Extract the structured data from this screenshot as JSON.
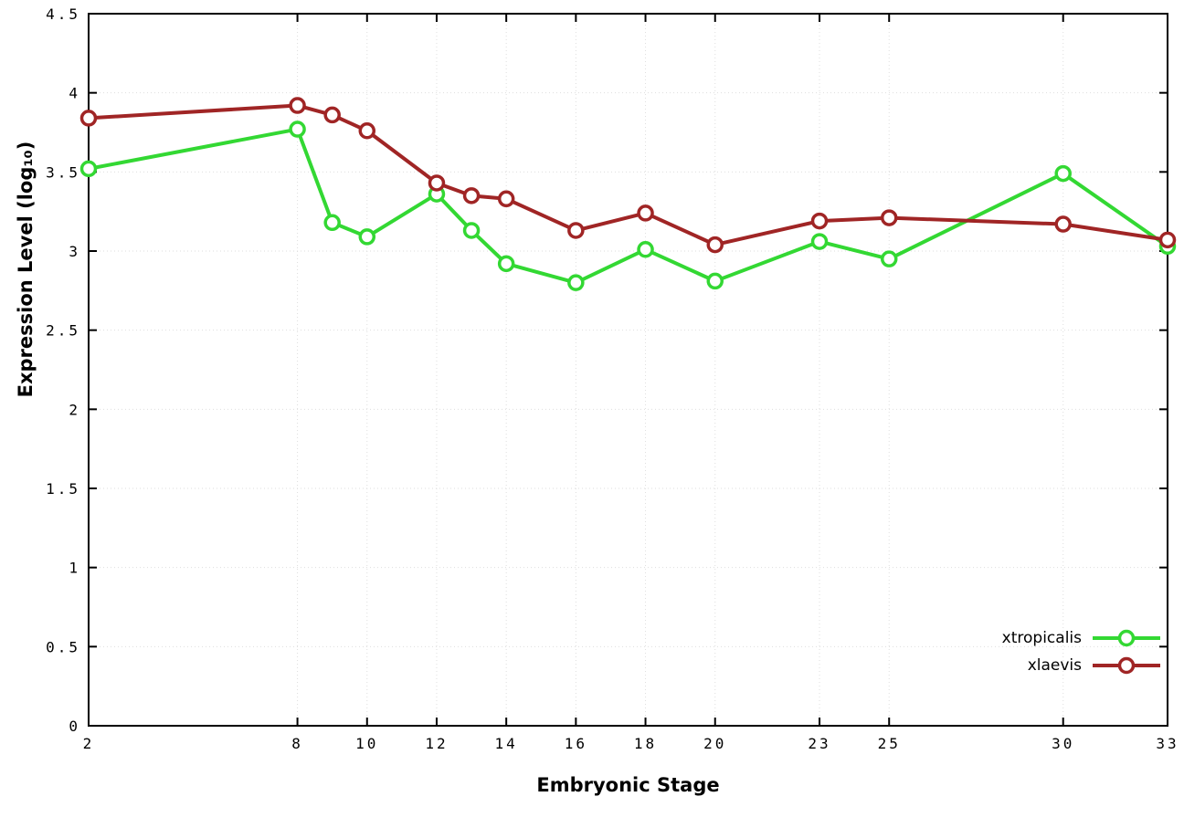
{
  "chart_data": {
    "type": "line",
    "title": "",
    "xlabel": "Embryonic Stage",
    "ylabel": "Expression Level (log₁₀)",
    "xlim": [
      2,
      33
    ],
    "ylim": [
      0,
      4.5
    ],
    "grid": true,
    "legend_position": "bottom-right",
    "x_ticks": [
      2,
      8,
      10,
      12,
      14,
      16,
      18,
      20,
      23,
      25,
      30,
      33
    ],
    "x_tick_labels": [
      "2",
      "8",
      "10",
      "12",
      "14",
      "16",
      "18",
      "20",
      "23",
      "25",
      "30",
      "33"
    ],
    "y_ticks": [
      0,
      0.5,
      1,
      1.5,
      2,
      2.5,
      3,
      3.5,
      4,
      4.5
    ],
    "y_tick_labels": [
      "0",
      "0.5",
      "1",
      "1.5",
      "2",
      "2.5",
      "3",
      "3.5",
      "4",
      "4.5"
    ],
    "x": [
      2,
      8,
      9,
      10,
      12,
      13,
      14,
      16,
      18,
      20,
      23,
      25,
      30,
      33
    ],
    "series": [
      {
        "name": "xtropicalis",
        "color": "#33d833",
        "values": [
          3.52,
          3.77,
          3.18,
          3.09,
          3.36,
          3.13,
          2.92,
          2.8,
          3.01,
          2.81,
          3.06,
          2.95,
          3.49,
          3.03
        ]
      },
      {
        "name": "xlaevis",
        "color": "#a02525",
        "values": [
          3.84,
          3.92,
          3.86,
          3.76,
          3.43,
          3.35,
          3.33,
          3.13,
          3.24,
          3.04,
          3.19,
          3.21,
          3.17,
          3.07
        ]
      }
    ]
  }
}
